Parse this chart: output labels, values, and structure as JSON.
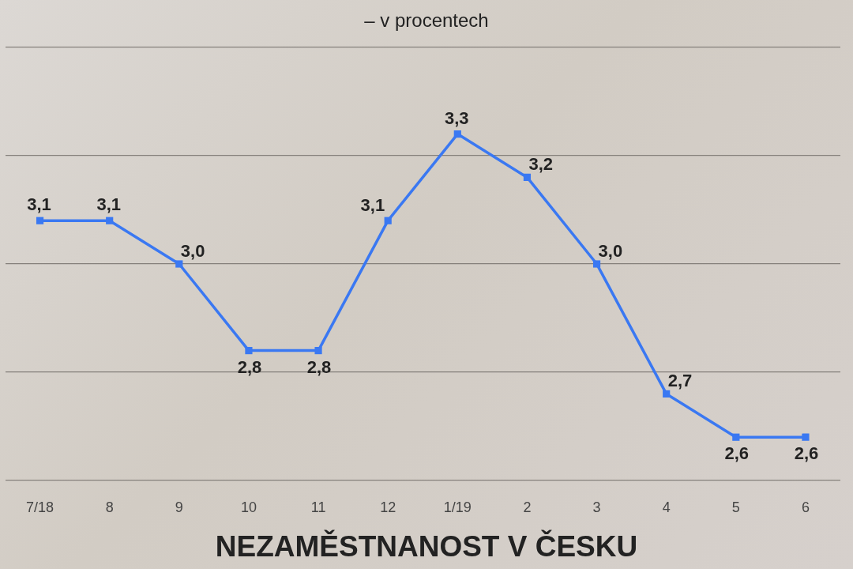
{
  "chart_data": {
    "type": "line",
    "title": "NEZAMĚSTNANOST V ČESKU",
    "subtitle": "– v procentech",
    "categories": [
      "7/18",
      "8",
      "9",
      "10",
      "11",
      "12",
      "1/19",
      "2",
      "3",
      "4",
      "5",
      "6"
    ],
    "series": [
      {
        "color": "#3a78f2",
        "values": [
          3.1,
          3.1,
          3.0,
          2.8,
          2.8,
          3.1,
          3.3,
          3.2,
          3.0,
          2.7,
          2.6,
          2.6
        ],
        "value_labels": [
          "3,1",
          "3,1",
          "3,0",
          "2,8",
          "2,8",
          "3,1",
          "3,3",
          "3,2",
          "3,0",
          "2,7",
          "2,6",
          "2,6"
        ]
      }
    ],
    "ylim": [
      2.5,
      3.5
    ],
    "yticks": [
      {
        "value": 2.5,
        "label": null
      },
      {
        "value": 2.75,
        "label": null
      },
      {
        "value": 3.0,
        "label": null
      },
      {
        "value": 3.25,
        "label": null
      },
      {
        "value": 3.5,
        "label": null
      }
    ],
    "tick_labels": "x",
    "grid": "y",
    "marker": "square",
    "legend": false
  }
}
